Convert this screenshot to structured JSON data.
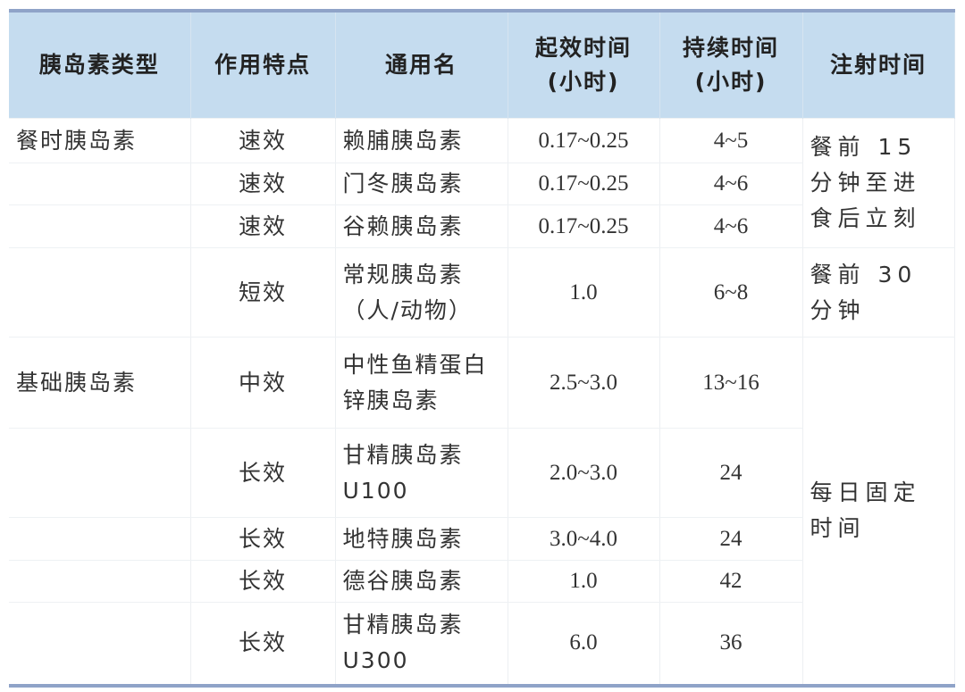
{
  "headers": [
    "胰岛素类型",
    "作用特点",
    "通用名",
    "起效时间\n(小时)",
    "持续时间\n(小时)",
    "注射时间"
  ],
  "header_lines": [
    [
      "胰岛素类型"
    ],
    [
      "作用特点"
    ],
    [
      "通用名"
    ],
    [
      "起效时间",
      "(小时)"
    ],
    [
      "持续时间",
      "(小时)"
    ],
    [
      "注射时间"
    ]
  ],
  "rows": [
    {
      "type": "餐时胰岛素",
      "feature": "速效",
      "name": "赖脯胰岛素",
      "onset": "0.17~0.25",
      "duration": "4~5",
      "injection": "餐前 15 分钟至进食后立刻"
    },
    {
      "type": "",
      "feature": "速效",
      "name": "门冬胰岛素",
      "onset": "0.17~0.25",
      "duration": "4~6"
    },
    {
      "type": "",
      "feature": "速效",
      "name": "谷赖胰岛素",
      "onset": "0.17~0.25",
      "duration": "4~6"
    },
    {
      "type": "",
      "feature": "短效",
      "name": "常规胰岛素（人/动物）",
      "onset": "1.0",
      "duration": "6~8",
      "injection": "餐前 30 分钟"
    },
    {
      "type": "基础胰岛素",
      "feature": "中效",
      "name": "中性鱼精蛋白锌胰岛素",
      "onset": "2.5~3.0",
      "duration": "13~16",
      "injection": "每日固定时间"
    },
    {
      "type": "",
      "feature": "长效",
      "name": "甘精胰岛素 U100",
      "onset": "2.0~3.0",
      "duration": "24"
    },
    {
      "type": "",
      "feature": "长效",
      "name": "地特胰岛素",
      "onset": "3.0~4.0",
      "duration": "24"
    },
    {
      "type": "",
      "feature": "长效",
      "name": "德谷胰岛素",
      "onset": "1.0",
      "duration": "42"
    },
    {
      "type": "",
      "feature": "长效",
      "name": "甘精胰岛素 U300",
      "onset": "6.0",
      "duration": "36"
    }
  ],
  "colors": {
    "header_bg": "#c5dcef",
    "rule": "#8fa3c8"
  }
}
